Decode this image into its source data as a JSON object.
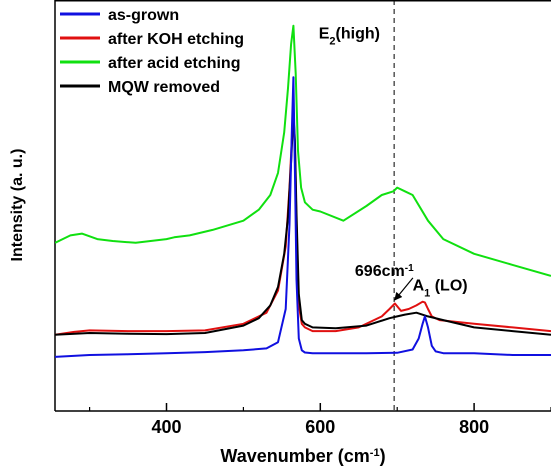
{
  "chart_data": {
    "type": "line",
    "xlabel": "Wavenumber",
    "xlabel_unit_base": "cm",
    "xlabel_unit_exp": "-1",
    "ylabel": "Intensity (a. u.)",
    "xlim": [
      255,
      900
    ],
    "ylim": [
      0,
      1
    ],
    "x_ticks": [
      400,
      600,
      800
    ],
    "y_ticks_visible": false,
    "legend_position": "top-left",
    "grid": false,
    "series": [
      {
        "name": "as-grown",
        "color": "#1010e0",
        "x": [
          255,
          300,
          350,
          400,
          450,
          500,
          530,
          545,
          555,
          560,
          563,
          565,
          567,
          569,
          572,
          576,
          580,
          590,
          620,
          660,
          700,
          720,
          728,
          733,
          736,
          740,
          745,
          750,
          760,
          800,
          850,
          900
        ],
        "y": [
          0.09,
          0.095,
          0.097,
          0.1,
          0.103,
          0.108,
          0.113,
          0.13,
          0.22,
          0.45,
          0.7,
          0.85,
          0.6,
          0.3,
          0.14,
          0.108,
          0.102,
          0.1,
          0.1,
          0.1,
          0.101,
          0.11,
          0.14,
          0.18,
          0.2,
          0.17,
          0.12,
          0.105,
          0.1,
          0.1,
          0.095,
          0.095
        ]
      },
      {
        "name": "after KOH etching",
        "color": "#e01010",
        "x": [
          255,
          280,
          300,
          350,
          400,
          450,
          500,
          530,
          545,
          555,
          560,
          563,
          565,
          567,
          569,
          572,
          576,
          580,
          590,
          620,
          650,
          680,
          690,
          697,
          705,
          715,
          725,
          733,
          736,
          740,
          745,
          755,
          800,
          850,
          900
        ],
        "y": [
          0.15,
          0.158,
          0.162,
          0.16,
          0.16,
          0.162,
          0.18,
          0.21,
          0.27,
          0.39,
          0.55,
          0.68,
          0.72,
          0.66,
          0.45,
          0.23,
          0.18,
          0.17,
          0.16,
          0.16,
          0.17,
          0.2,
          0.22,
          0.235,
          0.215,
          0.22,
          0.23,
          0.24,
          0.238,
          0.22,
          0.2,
          0.19,
          0.18,
          0.17,
          0.16
        ]
      },
      {
        "name": "after acid etching",
        "color": "#10e010",
        "x": [
          255,
          275,
          290,
          310,
          330,
          360,
          400,
          410,
          430,
          460,
          500,
          520,
          535,
          545,
          553,
          558,
          562,
          565,
          568,
          571,
          575,
          580,
          590,
          600,
          630,
          660,
          680,
          695,
          700,
          710,
          720,
          740,
          760,
          800,
          850,
          900
        ],
        "y": [
          0.4,
          0.42,
          0.425,
          0.41,
          0.405,
          0.4,
          0.41,
          0.415,
          0.42,
          0.435,
          0.46,
          0.49,
          0.53,
          0.59,
          0.7,
          0.82,
          0.94,
          0.99,
          0.86,
          0.65,
          0.55,
          0.51,
          0.49,
          0.485,
          0.46,
          0.5,
          0.53,
          0.54,
          0.55,
          0.54,
          0.53,
          0.46,
          0.41,
          0.37,
          0.34,
          0.31
        ]
      },
      {
        "name": "MQW removed",
        "color": "#000000",
        "x": [
          255,
          300,
          350,
          400,
          450,
          500,
          520,
          535,
          545,
          553,
          558,
          562,
          565,
          567,
          569,
          572,
          576,
          580,
          590,
          620,
          660,
          690,
          700,
          710,
          725,
          740,
          760,
          800,
          850,
          900
        ],
        "y": [
          0.15,
          0.155,
          0.153,
          0.152,
          0.155,
          0.175,
          0.195,
          0.23,
          0.28,
          0.37,
          0.47,
          0.62,
          0.75,
          0.68,
          0.48,
          0.26,
          0.19,
          0.18,
          0.17,
          0.168,
          0.175,
          0.195,
          0.2,
          0.205,
          0.21,
          0.2,
          0.19,
          0.17,
          0.16,
          0.15
        ]
      }
    ],
    "reference_line": {
      "x": 696,
      "style": "dashed"
    },
    "annotations": [
      {
        "label": "E",
        "sub": "2",
        "suffix": "(high)",
        "x": 598,
        "y": 0.955
      },
      {
        "label": "696cm",
        "sup": "-1",
        "x": 645,
        "y": 0.31,
        "arrow_to": {
          "x": 697,
          "y": 0.245
        }
      },
      {
        "label": "A",
        "sub": "1",
        "suffix": " (LO)",
        "x": 720,
        "y": 0.27
      }
    ]
  }
}
